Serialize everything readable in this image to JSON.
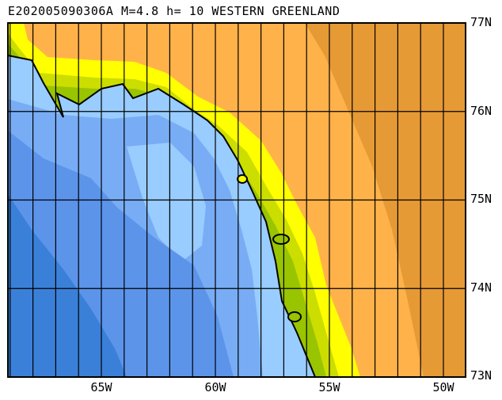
{
  "title": "E202005090306A M=4.8 h= 10 WESTERN GREENLAND",
  "lat_labels": [
    "77N",
    "76N",
    "75N",
    "74N",
    "73N"
  ],
  "lon_labels": [
    "65W",
    "60W",
    "55W",
    "50W"
  ],
  "colors": {
    "deep_water": "#3a80d8",
    "mid_water": "#5c94ea",
    "shallow_water_2": "#78adf5",
    "shallow_water": "#99ccff",
    "lowland": "#99c400",
    "low_hill": "#ccdd00",
    "hill": "#ffff00",
    "highland": "#ffb24a",
    "ice_high": "#e69a35"
  }
}
